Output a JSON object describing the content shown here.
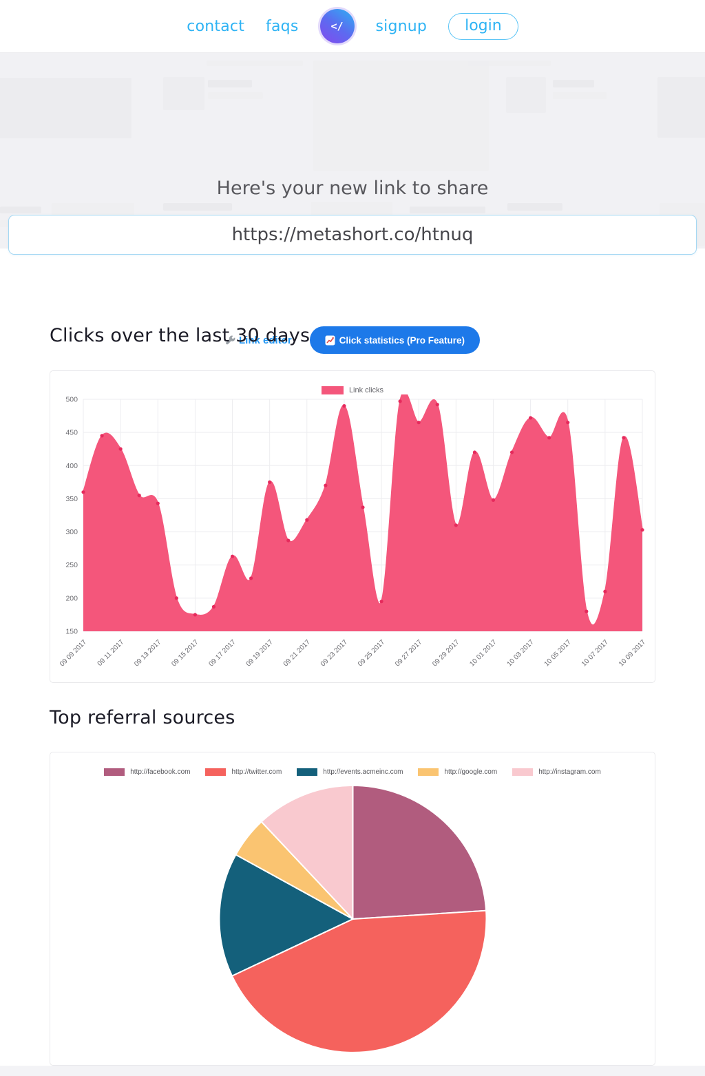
{
  "nav": {
    "items": [
      {
        "label": "contact"
      },
      {
        "label": "faqs"
      }
    ],
    "logo_symbol": "</",
    "items_after": [
      {
        "label": "signup"
      }
    ],
    "login_label": "login",
    "accent_color": "#2eb3f4"
  },
  "hero": {
    "heading": "Here's your new link to share",
    "short_url": "https://metashort.co/htnuq"
  },
  "actions": {
    "link_editor_label": "Link editor",
    "stats_label": "Click statistics (Pro Feature)",
    "stats_bg": "#1d79e9"
  },
  "sections": {
    "clicks_heading": "Clicks over the last 30 days",
    "referrals_heading": "Top referral sources"
  },
  "chart_data": [
    {
      "type": "area",
      "title": "Clicks over the last 30 days",
      "legend": [
        {
          "label": "Link clicks",
          "color": "#f4567b"
        }
      ],
      "legend_position": "top",
      "x_tick_labels": [
        "09 09 2017",
        "09 11 2017",
        "09 13 2017",
        "09 15 2017",
        "09 17 2017",
        "09 19 2017",
        "09 21 2017",
        "09 23 2017",
        "09 25 2017",
        "09 27 2017",
        "09 29 2017",
        "10 01 2017",
        "10 03 2017",
        "10 05 2017",
        "10 07 2017",
        "10 09 2017"
      ],
      "points_per_tick": 2,
      "values": [
        360,
        445,
        425,
        355,
        343,
        200,
        175,
        187,
        263,
        230,
        375,
        287,
        318,
        370,
        490,
        337,
        195,
        497,
        465,
        492,
        310,
        420,
        348,
        420,
        472,
        442,
        465,
        180,
        210,
        442,
        303
      ],
      "ylim": [
        150,
        500
      ],
      "y_ticks": [
        500,
        450,
        400,
        350,
        300,
        250,
        200,
        150
      ],
      "grid": true,
      "area_color": "#f4567b",
      "point_color": "#e62a5c",
      "grid_color": "#ededf0",
      "tick_color": "#6b6b70"
    },
    {
      "type": "pie",
      "title": "Top referral sources",
      "legend_position": "top",
      "slices": [
        {
          "label": "http://facebook.com",
          "value": 24,
          "color": "#b15c7e"
        },
        {
          "label": "http://twitter.com",
          "value": 44,
          "color": "#f5625d"
        },
        {
          "label": "http://events.acmeinc.com",
          "value": 15,
          "color": "#14607b"
        },
        {
          "label": "http://google.com",
          "value": 5,
          "color": "#fac471"
        },
        {
          "label": "http://instagram.com",
          "value": 12,
          "color": "#f9c9cf"
        }
      ]
    }
  ]
}
